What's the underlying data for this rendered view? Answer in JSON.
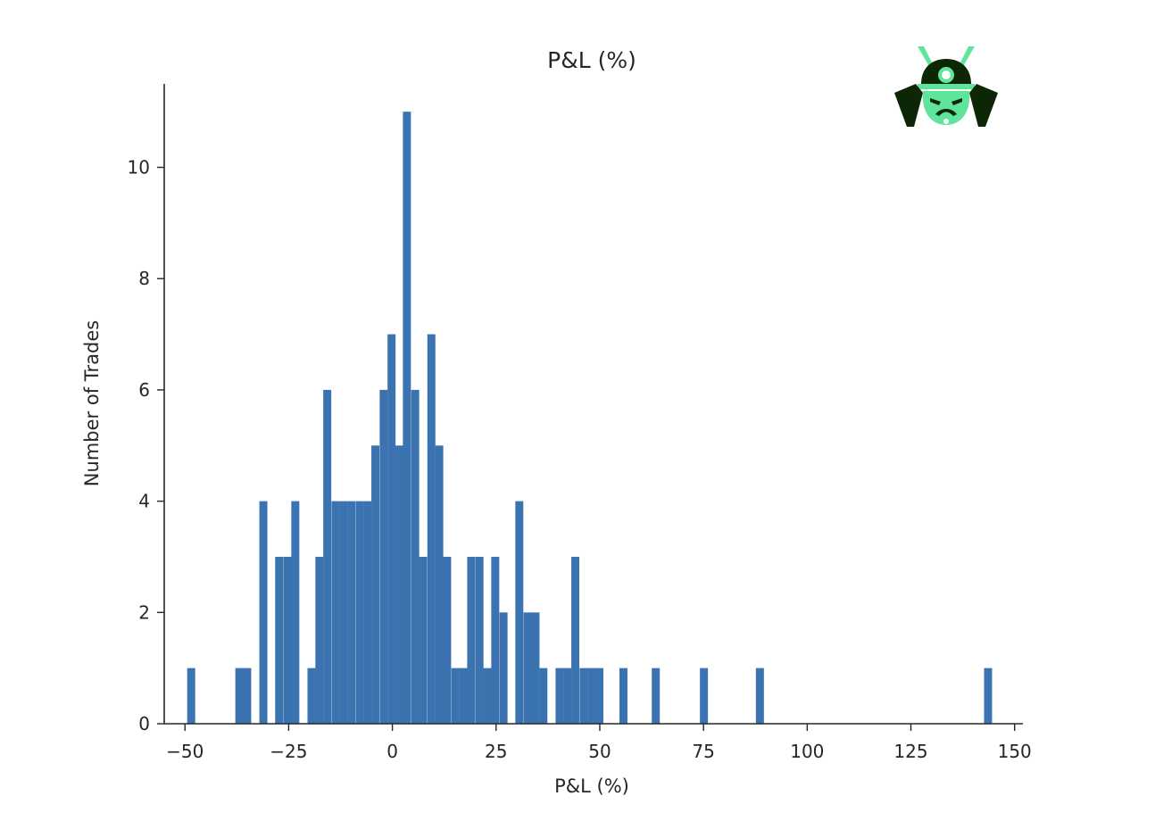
{
  "chart_data": {
    "type": "bar",
    "title": "P&L (%)",
    "xlabel": "P&L (%)",
    "ylabel": "Number of Trades",
    "xlim": [
      -55,
      152
    ],
    "ylim": [
      0,
      11.5
    ],
    "xticks": [
      -50,
      -25,
      0,
      25,
      50,
      75,
      100,
      125,
      150
    ],
    "xtick_labels": [
      "−50",
      "−25",
      "0",
      "25",
      "50",
      "75",
      "100",
      "125",
      "150"
    ],
    "yticks": [
      0,
      2,
      4,
      6,
      8,
      10
    ],
    "ytick_labels": [
      "0",
      "2",
      "4",
      "6",
      "8",
      "10"
    ],
    "bin_width": 1.93,
    "bar_color": "#3b73b0",
    "bins": [
      {
        "x": -48.5,
        "count": 1
      },
      {
        "x": -36.9,
        "count": 1
      },
      {
        "x": -35.0,
        "count": 1
      },
      {
        "x": -31.1,
        "count": 4
      },
      {
        "x": -27.3,
        "count": 3
      },
      {
        "x": -25.3,
        "count": 3
      },
      {
        "x": -23.4,
        "count": 4
      },
      {
        "x": -19.5,
        "count": 1
      },
      {
        "x": -17.6,
        "count": 3
      },
      {
        "x": -15.7,
        "count": 6
      },
      {
        "x": -13.7,
        "count": 4
      },
      {
        "x": -11.8,
        "count": 4
      },
      {
        "x": -9.9,
        "count": 4
      },
      {
        "x": -7.9,
        "count": 4
      },
      {
        "x": -6.0,
        "count": 4
      },
      {
        "x": -4.1,
        "count": 5
      },
      {
        "x": -2.1,
        "count": 6
      },
      {
        "x": -0.2,
        "count": 7
      },
      {
        "x": 1.7,
        "count": 5
      },
      {
        "x": 3.5,
        "count": 11
      },
      {
        "x": 5.5,
        "count": 6
      },
      {
        "x": 7.4,
        "count": 3
      },
      {
        "x": 9.4,
        "count": 7
      },
      {
        "x": 11.3,
        "count": 5
      },
      {
        "x": 13.2,
        "count": 3
      },
      {
        "x": 15.2,
        "count": 1
      },
      {
        "x": 17.1,
        "count": 1
      },
      {
        "x": 19.0,
        "count": 3
      },
      {
        "x": 21.0,
        "count": 3
      },
      {
        "x": 22.9,
        "count": 1
      },
      {
        "x": 24.8,
        "count": 3
      },
      {
        "x": 26.8,
        "count": 2
      },
      {
        "x": 30.6,
        "count": 4
      },
      {
        "x": 32.6,
        "count": 2
      },
      {
        "x": 34.5,
        "count": 2
      },
      {
        "x": 36.4,
        "count": 1
      },
      {
        "x": 40.3,
        "count": 1
      },
      {
        "x": 42.2,
        "count": 1
      },
      {
        "x": 44.1,
        "count": 3
      },
      {
        "x": 46.1,
        "count": 1
      },
      {
        "x": 48.0,
        "count": 1
      },
      {
        "x": 49.9,
        "count": 1
      },
      {
        "x": 55.7,
        "count": 1
      },
      {
        "x": 63.5,
        "count": 1
      },
      {
        "x": 75.1,
        "count": 1
      },
      {
        "x": 88.6,
        "count": 1
      },
      {
        "x": 143.6,
        "count": 1
      }
    ],
    "grid": false,
    "legend": "none"
  },
  "logo": {
    "icon": "samurai-helmet-icon",
    "colors": {
      "dark": "#0d2605",
      "accent": "#5fe59b"
    }
  }
}
